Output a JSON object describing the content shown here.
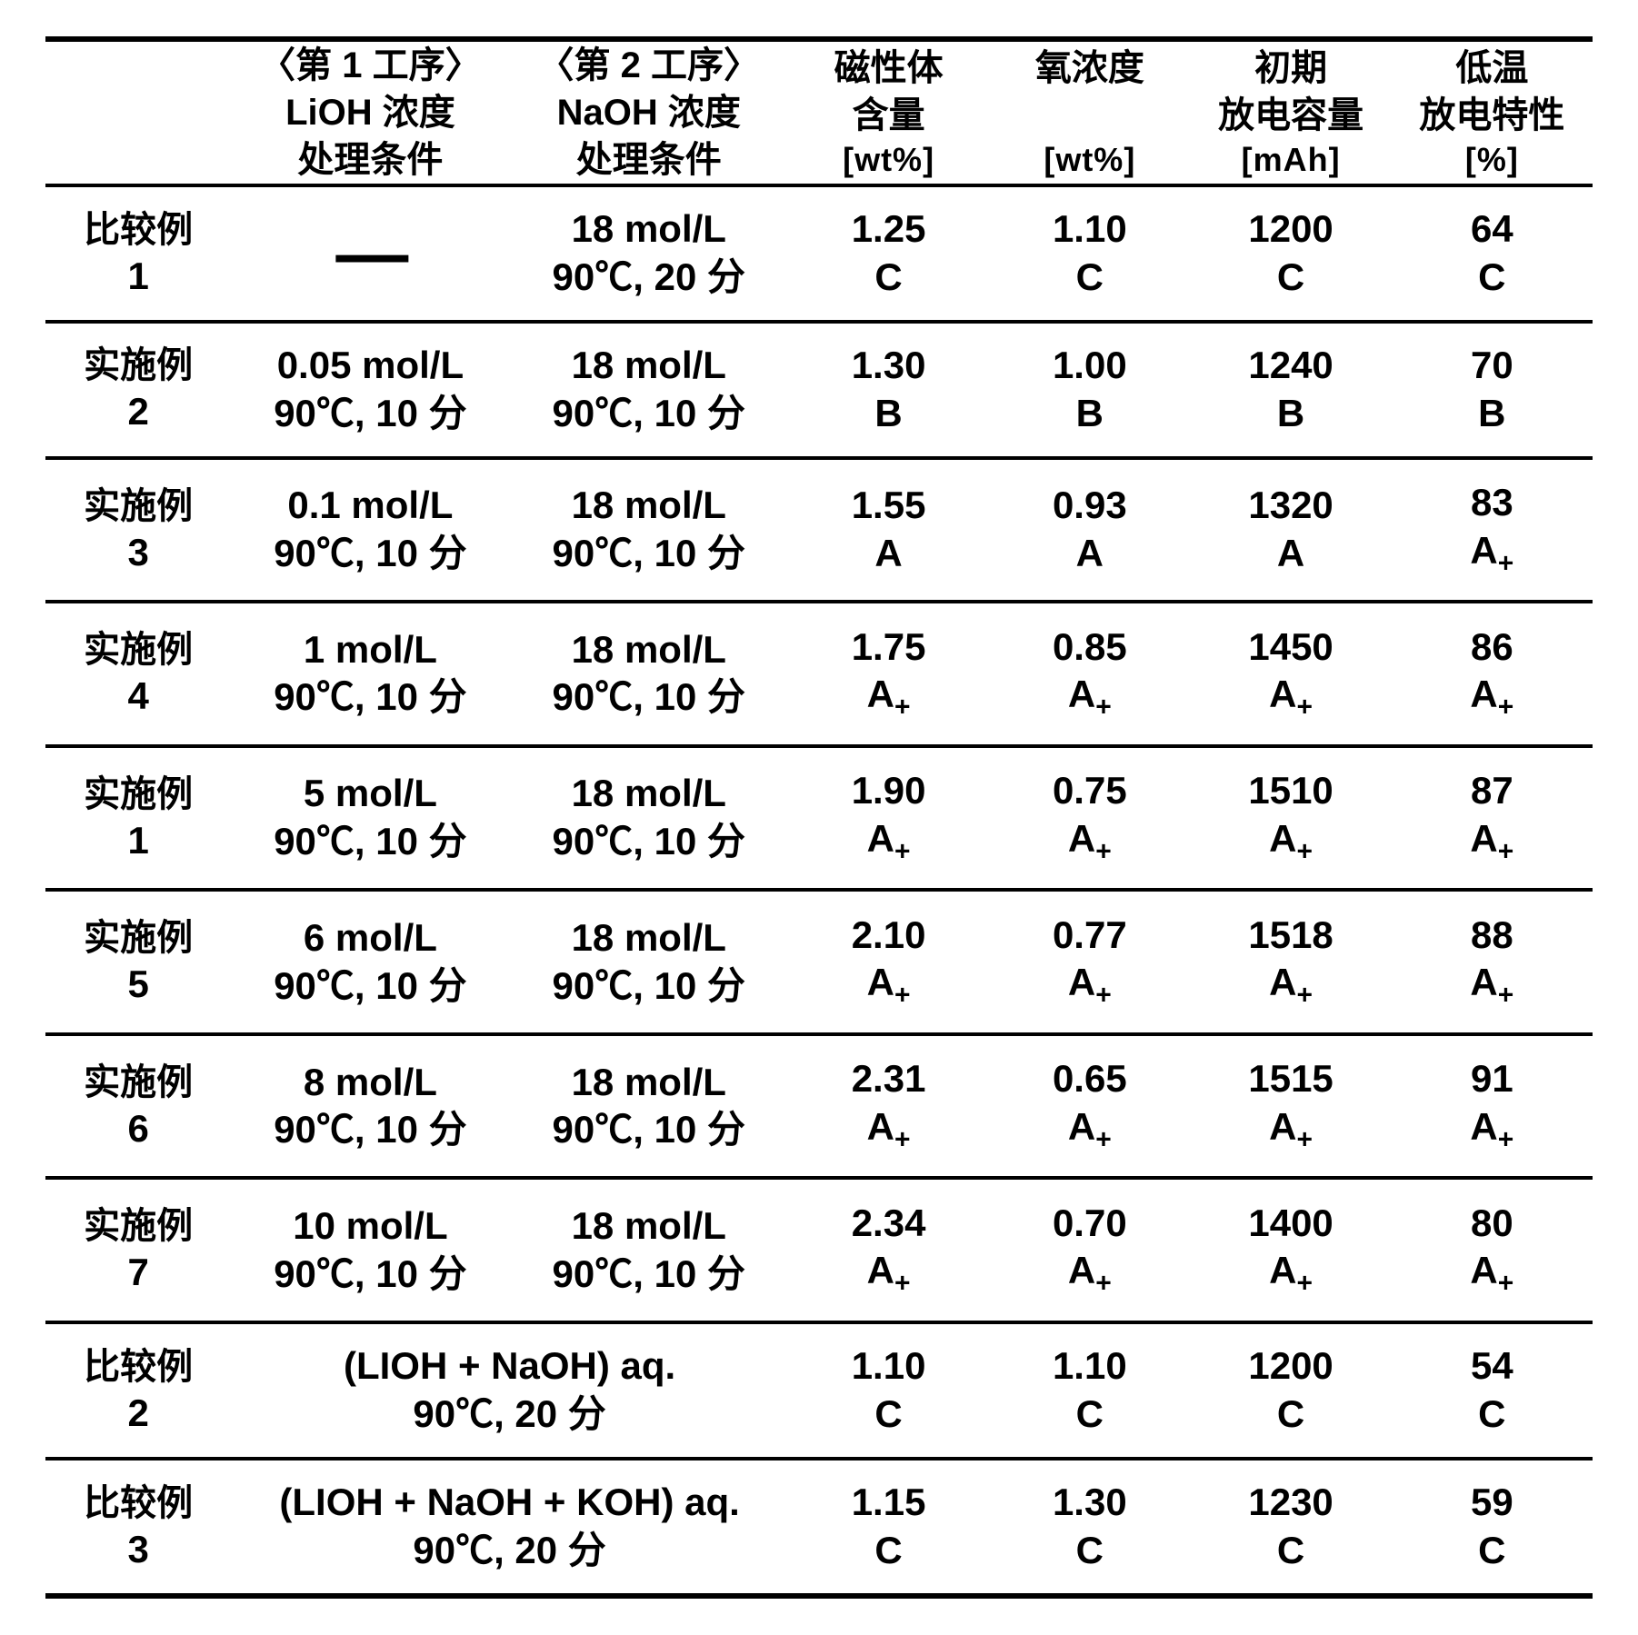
{
  "headers": {
    "col1": {
      "l1": "〈第 1 工序〉",
      "l2": "LiOH 浓度",
      "l3": "处理条件"
    },
    "col2": {
      "l1": "〈第 2 工序〉",
      "l2": "NaOH 浓度",
      "l3": "处理条件"
    },
    "col3": {
      "l1": "磁性体",
      "l2": "含量",
      "unit": "[wt%]"
    },
    "col4": {
      "l1": "氧浓度",
      "unit": "[wt%]"
    },
    "col5": {
      "l1": "初期",
      "l2": "放电容量",
      "unit": "[mAh]"
    },
    "col6": {
      "l1": "低温",
      "l2": "放电特性",
      "unit": "[%]"
    }
  },
  "rows": [
    {
      "label_l1": "比较例",
      "label_l2": "1",
      "p1_l1": "—",
      "p1_l2": "",
      "p2_l1": "18 mol/L",
      "p2_l2": "90℃, 20 分",
      "mag_v": "1.25",
      "mag_g": "C",
      "oxy_v": "1.10",
      "oxy_g": "C",
      "cap_v": "1200",
      "cap_g": "C",
      "low_v": "64",
      "low_g": "C"
    },
    {
      "label_l1": "实施例",
      "label_l2": "2",
      "p1_l1": "0.05 mol/L",
      "p1_l2": "90℃, 10 分",
      "p2_l1": "18 mol/L",
      "p2_l2": "90℃, 10 分",
      "mag_v": "1.30",
      "mag_g": "B",
      "oxy_v": "1.00",
      "oxy_g": "B",
      "cap_v": "1240",
      "cap_g": "B",
      "low_v": "70",
      "low_g": "B"
    },
    {
      "label_l1": "实施例",
      "label_l2": "3",
      "p1_l1": "0.1 mol/L",
      "p1_l2": "90℃, 10 分",
      "p2_l1": "18 mol/L",
      "p2_l2": "90℃, 10 分",
      "mag_v": "1.55",
      "mag_g": "A",
      "oxy_v": "0.93",
      "oxy_g": "A",
      "cap_v": "1320",
      "cap_g": "A",
      "low_v": "83",
      "low_g": "A+"
    },
    {
      "label_l1": "实施例",
      "label_l2": "4",
      "p1_l1": "1 mol/L",
      "p1_l2": "90℃, 10 分",
      "p2_l1": "18 mol/L",
      "p2_l2": "90℃, 10 分",
      "mag_v": "1.75",
      "mag_g": "A+",
      "oxy_v": "0.85",
      "oxy_g": "A+",
      "cap_v": "1450",
      "cap_g": "A+",
      "low_v": "86",
      "low_g": "A+"
    },
    {
      "label_l1": "实施例",
      "label_l2": "1",
      "p1_l1": "5 mol/L",
      "p1_l2": "90℃, 10 分",
      "p2_l1": "18 mol/L",
      "p2_l2": "90℃, 10 分",
      "mag_v": "1.90",
      "mag_g": "A+",
      "oxy_v": "0.75",
      "oxy_g": "A+",
      "cap_v": "1510",
      "cap_g": "A+",
      "low_v": "87",
      "low_g": "A+"
    },
    {
      "label_l1": "实施例",
      "label_l2": "5",
      "p1_l1": "6 mol/L",
      "p1_l2": "90℃, 10 分",
      "p2_l1": "18 mol/L",
      "p2_l2": "90℃, 10 分",
      "mag_v": "2.10",
      "mag_g": "A+",
      "oxy_v": "0.77",
      "oxy_g": "A+",
      "cap_v": "1518",
      "cap_g": "A+",
      "low_v": "88",
      "low_g": "A+"
    },
    {
      "label_l1": "实施例",
      "label_l2": "6",
      "p1_l1": "8 mol/L",
      "p1_l2": "90℃, 10 分",
      "p2_l1": "18 mol/L",
      "p2_l2": "90℃, 10 分",
      "mag_v": "2.31",
      "mag_g": "A+",
      "oxy_v": "0.65",
      "oxy_g": "A+",
      "cap_v": "1515",
      "cap_g": "A+",
      "low_v": "91",
      "low_g": "A+"
    },
    {
      "label_l1": "实施例",
      "label_l2": "7",
      "p1_l1": "10 mol/L",
      "p1_l2": "90℃, 10 分",
      "p2_l1": "18 mol/L",
      "p2_l2": "90℃, 10 分",
      "mag_v": "2.34",
      "mag_g": "A+",
      "oxy_v": "0.70",
      "oxy_g": "A+",
      "cap_v": "1400",
      "cap_g": "A+",
      "low_v": "80",
      "low_g": "A+"
    },
    {
      "label_l1": "比较例",
      "label_l2": "2",
      "merged": true,
      "p_l1": "(LIOH + NaOH) aq.",
      "p_l2": "90℃, 20 分",
      "mag_v": "1.10",
      "mag_g": "C",
      "oxy_v": "1.10",
      "oxy_g": "C",
      "cap_v": "1200",
      "cap_g": "C",
      "low_v": "54",
      "low_g": "C"
    },
    {
      "label_l1": "比较例",
      "label_l2": "3",
      "merged": true,
      "p_l1": "(LIOH + NaOH + KOH) aq.",
      "p_l2": "90℃, 20 分",
      "mag_v": "1.15",
      "mag_g": "C",
      "oxy_v": "1.30",
      "oxy_g": "C",
      "cap_v": "1230",
      "cap_g": "C",
      "low_v": "59",
      "low_g": "C"
    }
  ]
}
